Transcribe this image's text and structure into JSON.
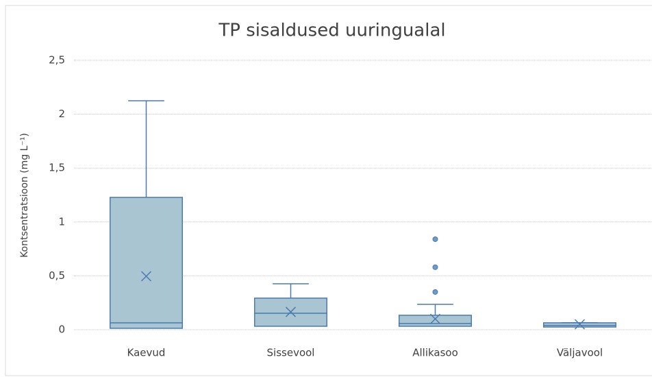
{
  "chart_data": {
    "type": "box",
    "title": "TP sisaldused uuringualal",
    "y_label": "Kontsentratsioon (mg L⁻¹)",
    "categories": [
      "Kaevud",
      "Sissevool",
      "Allikasoo",
      "Väljavool"
    ],
    "boxes": [
      {
        "min": 0.01,
        "q1": 0.013,
        "median": 0.064,
        "q3": 1.228,
        "max": 2.125,
        "mean": 0.496,
        "outliers": []
      },
      {
        "min": 0.03,
        "q1": 0.032,
        "median": 0.153,
        "q3": 0.293,
        "max": 0.426,
        "mean": 0.165,
        "outliers": []
      },
      {
        "min": 0.03,
        "q1": 0.032,
        "median": 0.057,
        "q3": 0.134,
        "max": 0.235,
        "mean": 0.1,
        "outliers": [
          0.84,
          0.58,
          0.35
        ]
      },
      {
        "min": 0.025,
        "q1": 0.025,
        "median": 0.04,
        "q3": 0.064,
        "max": 0.065,
        "mean": 0.05,
        "outliers": []
      }
    ],
    "fill": "#a9c5d1",
    "stroke": "#4a7ab0",
    "ylim": [
      0,
      2.5
    ],
    "yticks": [
      0,
      {
        "value": 0.5,
        "label": "0,5"
      },
      1,
      {
        "value": 1.5,
        "label": "1,5"
      },
      2,
      {
        "value": 2.5,
        "label": "2,5"
      }
    ],
    "grid": true
  }
}
